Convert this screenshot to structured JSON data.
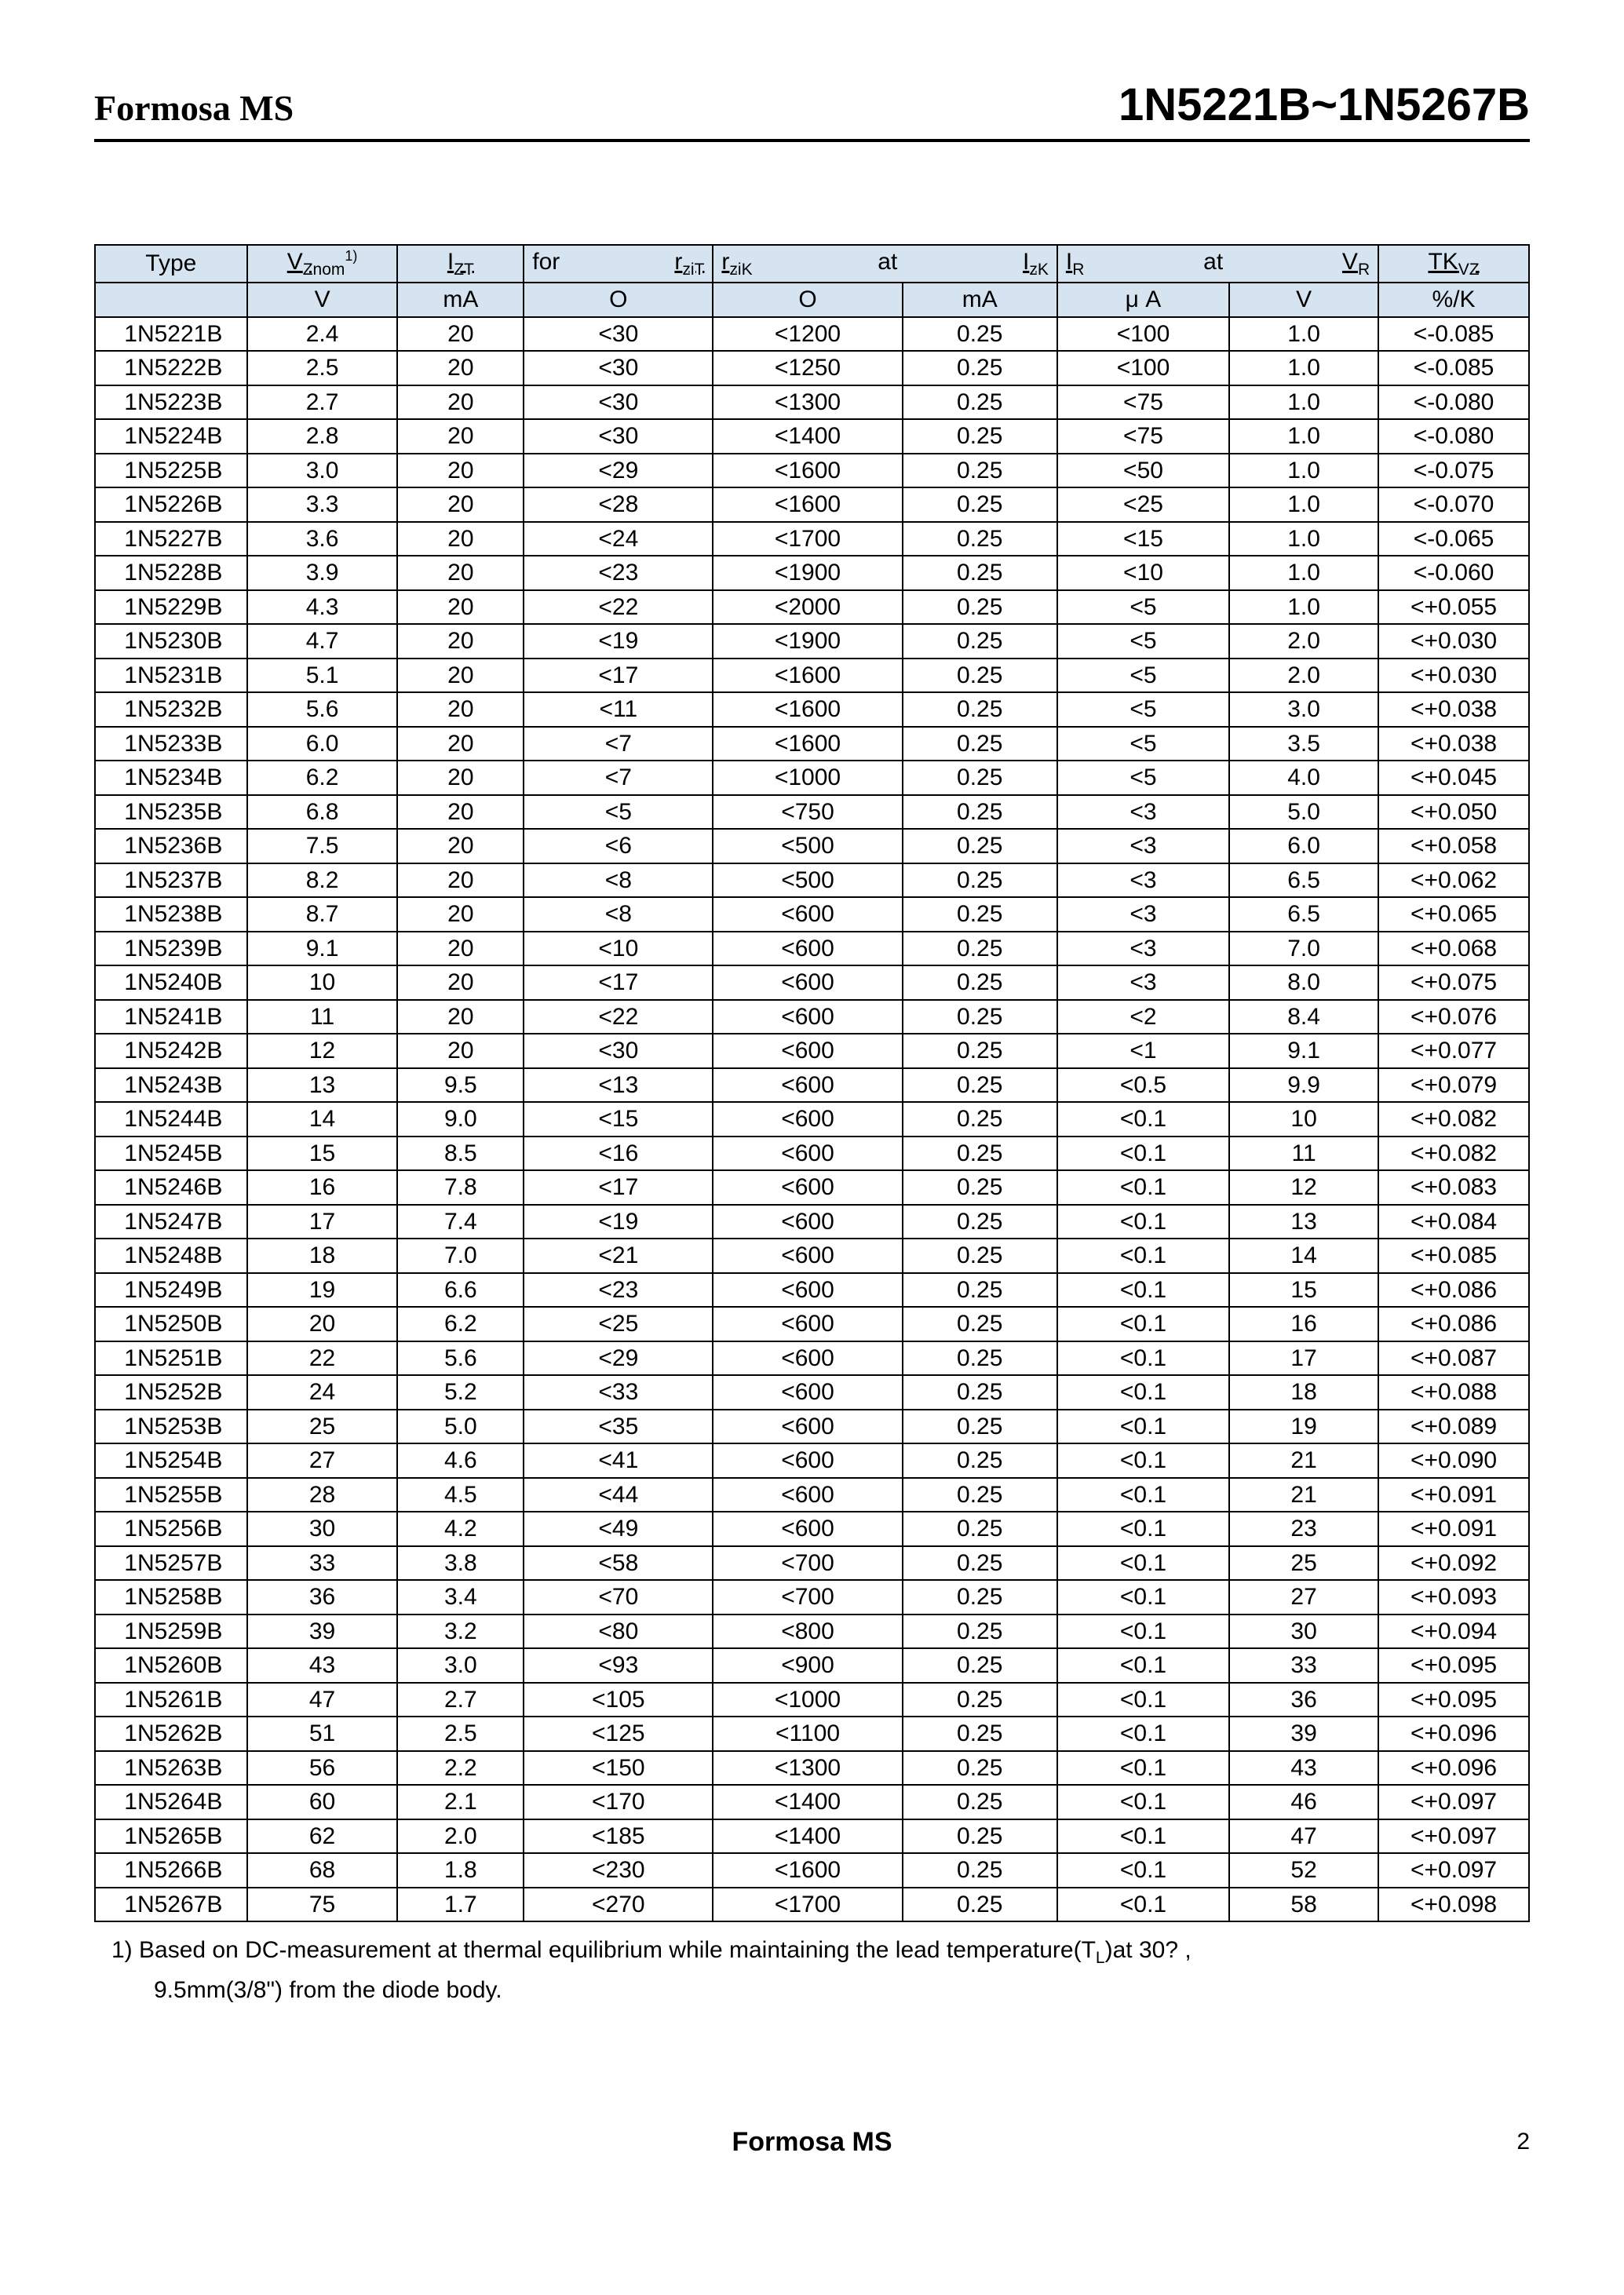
{
  "header": {
    "brand": "Formosa  MS",
    "part_range": "1N5221B~1N5267B"
  },
  "colors": {
    "header_bg": "#d6e3f0",
    "border": "#000000",
    "background": "#ffffff",
    "text": "#000000"
  },
  "table": {
    "header_row1": {
      "c1": "Type",
      "c2": {
        "text": "V",
        "sub": "Znom",
        "sup": "1)"
      },
      "c3": {
        "text": "I",
        "sub": "ZT"
      },
      "c4": {
        "left": "for",
        "right_text": "r",
        "right_sub": "ziT"
      },
      "c5": {
        "left_text": "r",
        "left_sub": "ziK",
        "mid": "at",
        "right_text": "I",
        "right_sub": "zK"
      },
      "c6": "",
      "c7": {
        "left_text": "I",
        "left_sub": "R",
        "mid": "at",
        "right_text": "V",
        "right_sub": "R"
      },
      "c8": "",
      "c9": {
        "text": "TK",
        "sub": "VZ"
      }
    },
    "header_row2": [
      "",
      "V",
      "mA",
      "Ο",
      "Ο",
      "mA",
      "μ A",
      "V",
      "%/K"
    ],
    "rows": [
      [
        "1N5221B",
        "2.4",
        "20",
        "<30",
        "<1200",
        "0.25",
        "<100",
        "1.0",
        "<-0.085"
      ],
      [
        "1N5222B",
        "2.5",
        "20",
        "<30",
        "<1250",
        "0.25",
        "<100",
        "1.0",
        "<-0.085"
      ],
      [
        "1N5223B",
        "2.7",
        "20",
        "<30",
        "<1300",
        "0.25",
        "<75",
        "1.0",
        "<-0.080"
      ],
      [
        "1N5224B",
        "2.8",
        "20",
        "<30",
        "<1400",
        "0.25",
        "<75",
        "1.0",
        "<-0.080"
      ],
      [
        "1N5225B",
        "3.0",
        "20",
        "<29",
        "<1600",
        "0.25",
        "<50",
        "1.0",
        "<-0.075"
      ],
      [
        "1N5226B",
        "3.3",
        "20",
        "<28",
        "<1600",
        "0.25",
        "<25",
        "1.0",
        "<-0.070"
      ],
      [
        "1N5227B",
        "3.6",
        "20",
        "<24",
        "<1700",
        "0.25",
        "<15",
        "1.0",
        "<-0.065"
      ],
      [
        "1N5228B",
        "3.9",
        "20",
        "<23",
        "<1900",
        "0.25",
        "<10",
        "1.0",
        "<-0.060"
      ],
      [
        "1N5229B",
        "4.3",
        "20",
        "<22",
        "<2000",
        "0.25",
        "<5",
        "1.0",
        "<+0.055"
      ],
      [
        "1N5230B",
        "4.7",
        "20",
        "<19",
        "<1900",
        "0.25",
        "<5",
        "2.0",
        "<+0.030"
      ],
      [
        "1N5231B",
        "5.1",
        "20",
        "<17",
        "<1600",
        "0.25",
        "<5",
        "2.0",
        "<+0.030"
      ],
      [
        "1N5232B",
        "5.6",
        "20",
        "<11",
        "<1600",
        "0.25",
        "<5",
        "3.0",
        "<+0.038"
      ],
      [
        "1N5233B",
        "6.0",
        "20",
        "<7",
        "<1600",
        "0.25",
        "<5",
        "3.5",
        "<+0.038"
      ],
      [
        "1N5234B",
        "6.2",
        "20",
        "<7",
        "<1000",
        "0.25",
        "<5",
        "4.0",
        "<+0.045"
      ],
      [
        "1N5235B",
        "6.8",
        "20",
        "<5",
        "<750",
        "0.25",
        "<3",
        "5.0",
        "<+0.050"
      ],
      [
        "1N5236B",
        "7.5",
        "20",
        "<6",
        "<500",
        "0.25",
        "<3",
        "6.0",
        "<+0.058"
      ],
      [
        "1N5237B",
        "8.2",
        "20",
        "<8",
        "<500",
        "0.25",
        "<3",
        "6.5",
        "<+0.062"
      ],
      [
        "1N5238B",
        "8.7",
        "20",
        "<8",
        "<600",
        "0.25",
        "<3",
        "6.5",
        "<+0.065"
      ],
      [
        "1N5239B",
        "9.1",
        "20",
        "<10",
        "<600",
        "0.25",
        "<3",
        "7.0",
        "<+0.068"
      ],
      [
        "1N5240B",
        "10",
        "20",
        "<17",
        "<600",
        "0.25",
        "<3",
        "8.0",
        "<+0.075"
      ],
      [
        "1N5241B",
        "11",
        "20",
        "<22",
        "<600",
        "0.25",
        "<2",
        "8.4",
        "<+0.076"
      ],
      [
        "1N5242B",
        "12",
        "20",
        "<30",
        "<600",
        "0.25",
        "<1",
        "9.1",
        "<+0.077"
      ],
      [
        "1N5243B",
        "13",
        "9.5",
        "<13",
        "<600",
        "0.25",
        "<0.5",
        "9.9",
        "<+0.079"
      ],
      [
        "1N5244B",
        "14",
        "9.0",
        "<15",
        "<600",
        "0.25",
        "<0.1",
        "10",
        "<+0.082"
      ],
      [
        "1N5245B",
        "15",
        "8.5",
        "<16",
        "<600",
        "0.25",
        "<0.1",
        "11",
        "<+0.082"
      ],
      [
        "1N5246B",
        "16",
        "7.8",
        "<17",
        "<600",
        "0.25",
        "<0.1",
        "12",
        "<+0.083"
      ],
      [
        "1N5247B",
        "17",
        "7.4",
        "<19",
        "<600",
        "0.25",
        "<0.1",
        "13",
        "<+0.084"
      ],
      [
        "1N5248B",
        "18",
        "7.0",
        "<21",
        "<600",
        "0.25",
        "<0.1",
        "14",
        "<+0.085"
      ],
      [
        "1N5249B",
        "19",
        "6.6",
        "<23",
        "<600",
        "0.25",
        "<0.1",
        "15",
        "<+0.086"
      ],
      [
        "1N5250B",
        "20",
        "6.2",
        "<25",
        "<600",
        "0.25",
        "<0.1",
        "16",
        "<+0.086"
      ],
      [
        "1N5251B",
        "22",
        "5.6",
        "<29",
        "<600",
        "0.25",
        "<0.1",
        "17",
        "<+0.087"
      ],
      [
        "1N5252B",
        "24",
        "5.2",
        "<33",
        "<600",
        "0.25",
        "<0.1",
        "18",
        "<+0.088"
      ],
      [
        "1N5253B",
        "25",
        "5.0",
        "<35",
        "<600",
        "0.25",
        "<0.1",
        "19",
        "<+0.089"
      ],
      [
        "1N5254B",
        "27",
        "4.6",
        "<41",
        "<600",
        "0.25",
        "<0.1",
        "21",
        "<+0.090"
      ],
      [
        "1N5255B",
        "28",
        "4.5",
        "<44",
        "<600",
        "0.25",
        "<0.1",
        "21",
        "<+0.091"
      ],
      [
        "1N5256B",
        "30",
        "4.2",
        "<49",
        "<600",
        "0.25",
        "<0.1",
        "23",
        "<+0.091"
      ],
      [
        "1N5257B",
        "33",
        "3.8",
        "<58",
        "<700",
        "0.25",
        "<0.1",
        "25",
        "<+0.092"
      ],
      [
        "1N5258B",
        "36",
        "3.4",
        "<70",
        "<700",
        "0.25",
        "<0.1",
        "27",
        "<+0.093"
      ],
      [
        "1N5259B",
        "39",
        "3.2",
        "<80",
        "<800",
        "0.25",
        "<0.1",
        "30",
        "<+0.094"
      ],
      [
        "1N5260B",
        "43",
        "3.0",
        "<93",
        "<900",
        "0.25",
        "<0.1",
        "33",
        "<+0.095"
      ],
      [
        "1N5261B",
        "47",
        "2.7",
        "<105",
        "<1000",
        "0.25",
        "<0.1",
        "36",
        "<+0.095"
      ],
      [
        "1N5262B",
        "51",
        "2.5",
        "<125",
        "<1100",
        "0.25",
        "<0.1",
        "39",
        "<+0.096"
      ],
      [
        "1N5263B",
        "56",
        "2.2",
        "<150",
        "<1300",
        "0.25",
        "<0.1",
        "43",
        "<+0.096"
      ],
      [
        "1N5264B",
        "60",
        "2.1",
        "<170",
        "<1400",
        "0.25",
        "<0.1",
        "46",
        "<+0.097"
      ],
      [
        "1N5265B",
        "62",
        "2.0",
        "<185",
        "<1400",
        "0.25",
        "<0.1",
        "47",
        "<+0.097"
      ],
      [
        "1N5266B",
        "68",
        "1.8",
        "<230",
        "<1600",
        "0.25",
        "<0.1",
        "52",
        "<+0.097"
      ],
      [
        "1N5267B",
        "75",
        "1.7",
        "<270",
        "<1700",
        "0.25",
        "<0.1",
        "58",
        "<+0.098"
      ]
    ]
  },
  "footnote": {
    "line1_prefix": "1)   Based on DC-measurement at thermal equilibrium while maintaining the lead temperature(T",
    "line1_sub": "L",
    "line1_suffix": ")at 30? ,",
    "line2": "9.5mm(3/8\") from the diode body."
  },
  "footer": {
    "brand": "Formosa MS",
    "page": "2"
  }
}
